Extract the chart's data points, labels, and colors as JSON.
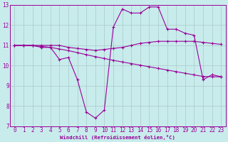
{
  "xlabel": "Windchill (Refroidissement éolien,°C)",
  "bg_color": "#c8ecec",
  "grid_color": "#c0d8d8",
  "line_color": "#990099",
  "xlim": [
    -0.5,
    23.5
  ],
  "ylim": [
    7,
    13
  ],
  "yticks": [
    7,
    8,
    9,
    10,
    11,
    12,
    13
  ],
  "xticks": [
    0,
    1,
    2,
    3,
    4,
    5,
    6,
    7,
    8,
    9,
    10,
    11,
    12,
    13,
    14,
    15,
    16,
    17,
    18,
    19,
    20,
    21,
    22,
    23
  ],
  "series1_x": [
    0,
    1,
    2,
    3,
    4,
    5,
    6,
    7,
    8,
    9,
    10,
    11,
    12,
    13,
    14,
    15,
    16,
    17,
    18,
    19,
    20,
    21,
    22,
    23
  ],
  "series1_y": [
    11.0,
    11.0,
    11.0,
    10.9,
    10.9,
    10.3,
    10.4,
    9.3,
    7.7,
    7.4,
    7.8,
    11.9,
    12.8,
    12.6,
    12.6,
    12.9,
    12.9,
    11.8,
    11.8,
    11.6,
    11.5,
    9.3,
    9.55,
    9.45
  ],
  "series2_x": [
    0,
    1,
    2,
    3,
    4,
    5,
    6,
    7,
    8,
    9,
    10,
    11,
    12,
    13,
    14,
    15,
    16,
    17,
    18,
    19,
    20,
    21,
    22,
    23
  ],
  "series2_y": [
    11.0,
    11.0,
    11.0,
    11.0,
    11.0,
    11.0,
    10.9,
    10.85,
    10.8,
    10.75,
    10.8,
    10.85,
    10.9,
    11.0,
    11.1,
    11.15,
    11.2,
    11.2,
    11.2,
    11.2,
    11.2,
    11.15,
    11.1,
    11.05
  ],
  "series3_x": [
    0,
    1,
    2,
    3,
    4,
    5,
    6,
    7,
    8,
    9,
    10,
    11,
    12,
    13,
    14,
    15,
    16,
    17,
    18,
    19,
    20,
    21,
    22,
    23
  ],
  "series3_y": [
    11.0,
    11.0,
    10.98,
    10.95,
    10.9,
    10.82,
    10.74,
    10.64,
    10.54,
    10.44,
    10.35,
    10.26,
    10.18,
    10.1,
    10.02,
    9.94,
    9.86,
    9.78,
    9.7,
    9.62,
    9.54,
    9.46,
    9.45,
    9.44
  ]
}
